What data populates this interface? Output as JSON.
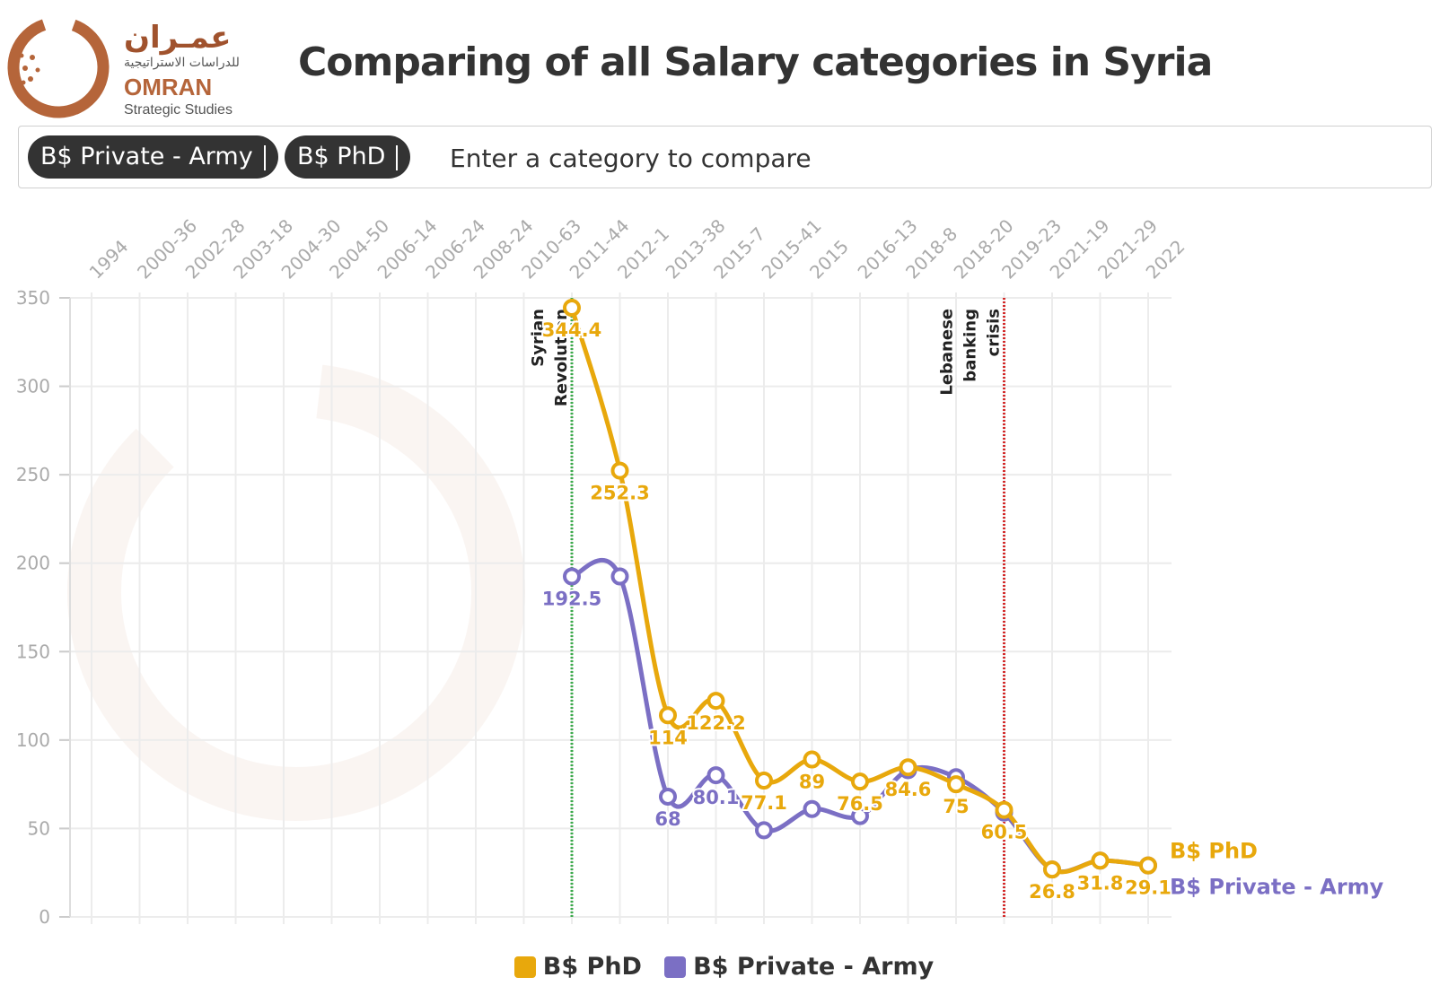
{
  "branding": {
    "arabic_name": "عمـران",
    "arabic_sub": "للدراسات الاستراتيجية",
    "english_name": "OMRAN",
    "english_sub": "Strategic Studies"
  },
  "header": {
    "title": "Comparing of all Salary categories in Syria"
  },
  "search": {
    "chips": [
      {
        "label": "B$ Private - Army"
      },
      {
        "label": "B$ PhD"
      }
    ],
    "placeholder": "Enter a category to compare"
  },
  "colors": {
    "phd": "#e8a80c",
    "army": "#7b6fc4",
    "revolution_line": "#3aaa4a",
    "crisis_line": "#d42a2a"
  },
  "chart_data": {
    "type": "line",
    "categories": [
      "1994",
      "2000-36",
      "2002-28",
      "2003-18",
      "2004-30",
      "2004-50",
      "2006-14",
      "2006-24",
      "2008-24",
      "2010-63",
      "2011-44",
      "2012-1",
      "2013-38",
      "2015-7",
      "2015-41",
      "2015",
      "2016-13",
      "2018-8",
      "2018-20",
      "2019-23",
      "2021-19",
      "2021-29",
      "2022"
    ],
    "ylim": [
      0,
      350
    ],
    "yticks": [
      0,
      50,
      100,
      150,
      200,
      250,
      300,
      350
    ],
    "series": [
      {
        "name": "B$ PhD",
        "color": "#e8a80c",
        "values": [
          null,
          null,
          null,
          null,
          null,
          null,
          null,
          null,
          null,
          null,
          344.4,
          252.3,
          114,
          122.2,
          77.1,
          89,
          76.5,
          84.6,
          75,
          60.5,
          26.8,
          31.8,
          29.1
        ],
        "labels": [
          "",
          "",
          "",
          "",
          "",
          "",
          "",
          "",
          "",
          "",
          "344.4",
          "252.3",
          "114",
          "122.2",
          "77.1",
          "89",
          "76.5",
          "84.6",
          "75",
          "60.5",
          "26.8",
          "31.8",
          "29.1"
        ]
      },
      {
        "name": "B$ Private - Army",
        "color": "#7b6fc4",
        "values": [
          null,
          null,
          null,
          null,
          null,
          null,
          null,
          null,
          null,
          null,
          192.5,
          192.5,
          68,
          80.1,
          49,
          61,
          57,
          83,
          79,
          59,
          26.8,
          31.8,
          29.1
        ],
        "labels": [
          "",
          "",
          "",
          "",
          "",
          "",
          "",
          "",
          "",
          "",
          "192.5",
          "",
          "68",
          "80.1",
          "",
          "",
          "",
          "",
          "",
          "",
          "",
          "",
          ""
        ]
      }
    ],
    "annotations": [
      {
        "text_lines": [
          "Syrian",
          "Revolution"
        ],
        "category": "2011-44",
        "color": "#3aaa4a"
      },
      {
        "text_lines": [
          "Lebanese",
          "banking",
          "crisis"
        ],
        "category": "2019-23",
        "color": "#d42a2a"
      }
    ],
    "legend": [
      "B$ PhD",
      "B$ Private - Army"
    ],
    "legend_position": "bottom",
    "grid": true
  }
}
